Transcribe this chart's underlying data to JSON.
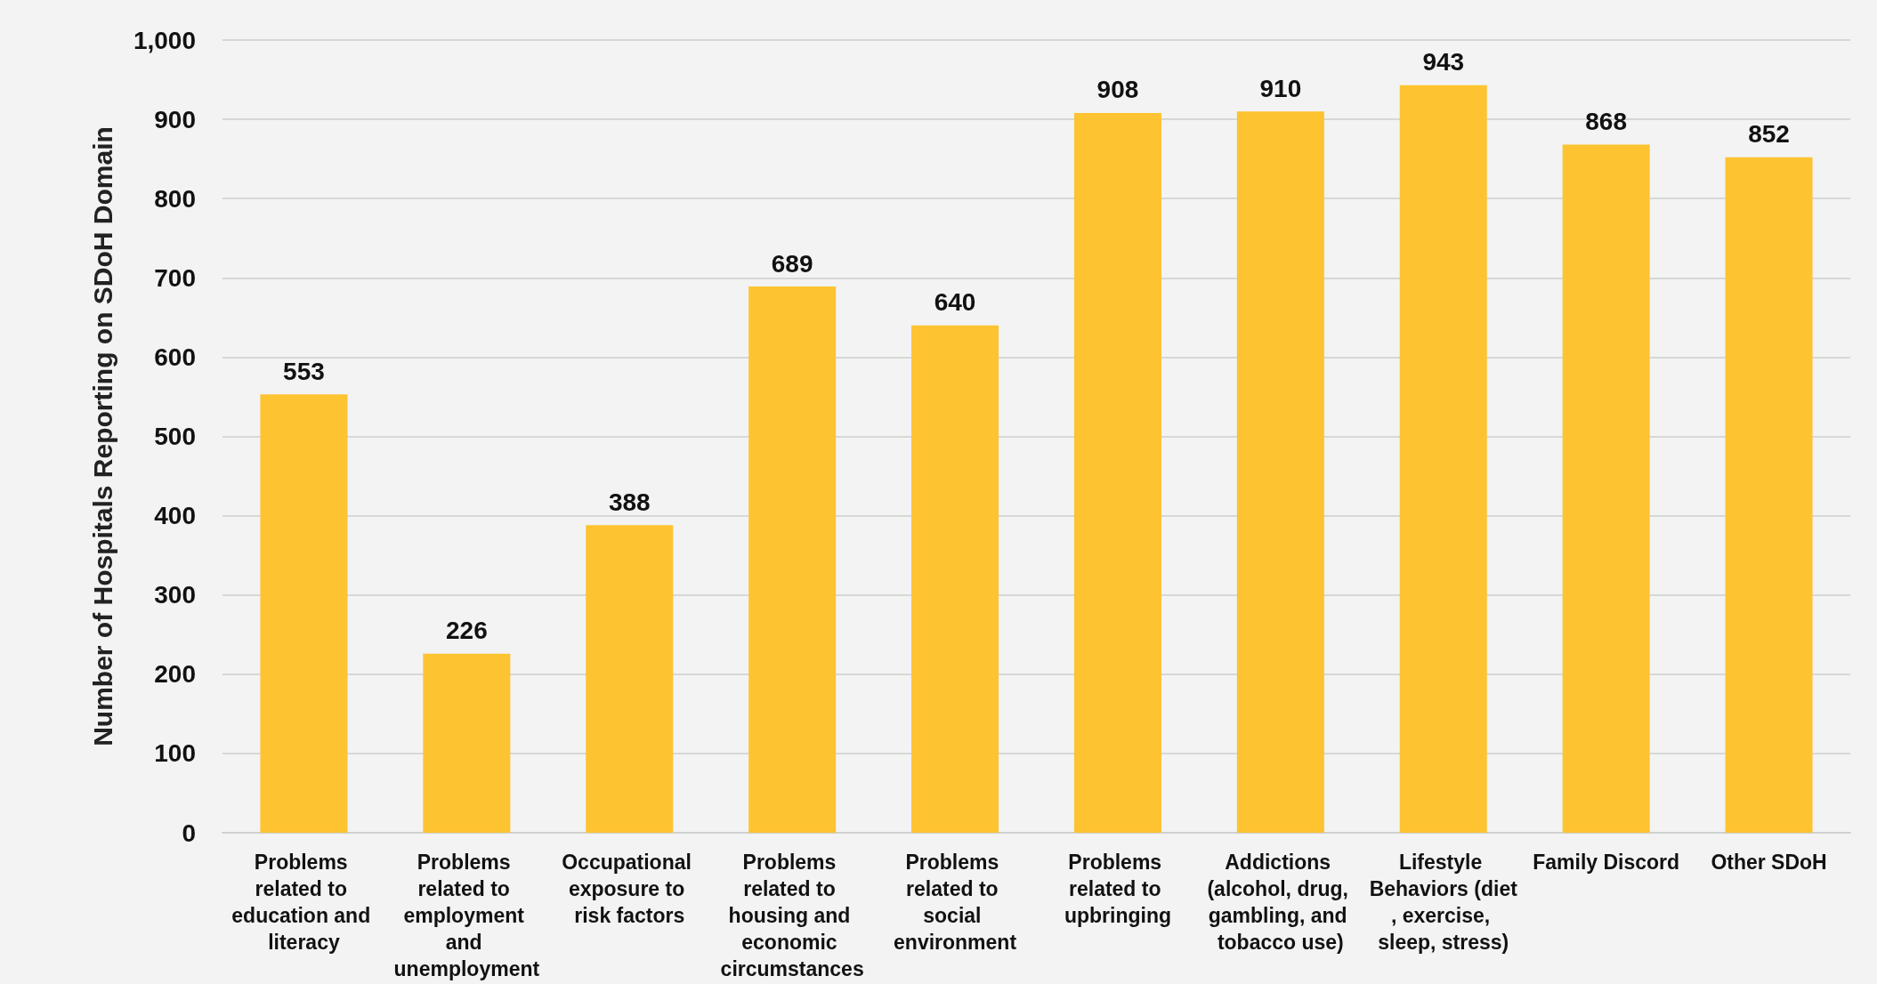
{
  "chart_data": {
    "type": "bar",
    "ylabel": "Number of Hospitals Reporting on SDoH Domain",
    "categories": [
      "Problems related to education and literacy",
      "Problems related to employment and unemployment",
      "Occupational exposure to risk factors",
      "Problems related to housing and economic circumstances",
      "Problems related to social environment",
      "Problems related to upbringing",
      "Addictions (alcohol, drug, gambling, and tobacco use)",
      "Lifestyle Behaviors (diet, exercise, sleep, stress)",
      "Family Discord",
      "Other SDoH"
    ],
    "values": [
      553,
      226,
      388,
      689,
      640,
      908,
      910,
      943,
      868,
      852
    ],
    "color": "#fdc331",
    "data_labels": true,
    "grid": "y",
    "ylim": [
      0,
      1000
    ],
    "yticks": [
      0,
      {
        "value": 100,
        "label": "100"
      },
      200,
      300,
      400,
      500,
      600,
      700,
      800,
      900,
      {
        "value": 1000,
        "label": "1,000"
      }
    ]
  }
}
